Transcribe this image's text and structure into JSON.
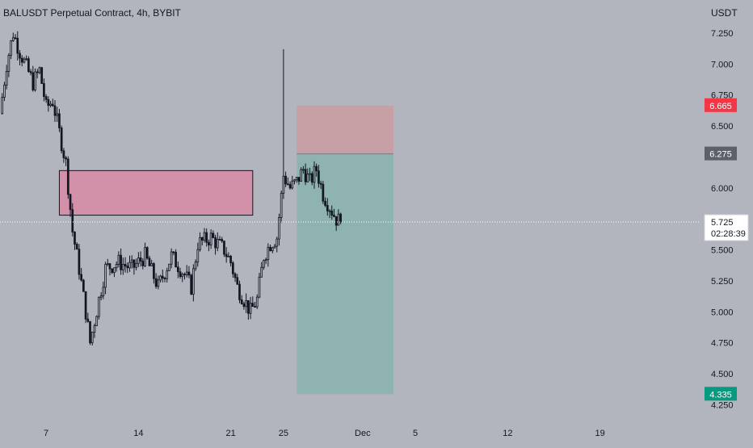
{
  "header": {
    "title": "BALUSDT Perpetual Contract, 4h, BYBIT",
    "currency": "USDT"
  },
  "colors": {
    "background": "#b2b5be",
    "candle": "#131722",
    "supply_zone_fill": "#d291a8",
    "risk_zone_fill": "#c7a0a6",
    "reward_zone_fill": "#8fb3b0",
    "stop_label": "#f23645",
    "target_label": "#089981",
    "entry_label": "#5d606b",
    "last_price_label": "#ffffff"
  },
  "chart_data": {
    "type": "candlestick",
    "symbol": "BALUSDT",
    "interval": "4h",
    "exchange": "BYBIT",
    "y_axis": {
      "range": [
        4.2,
        7.4
      ],
      "ticks": [
        "7.250",
        "7.000",
        "6.750",
        "6.500",
        "6.000",
        "5.500",
        "5.250",
        "5.000",
        "4.750",
        "4.500",
        "4.250"
      ]
    },
    "x_axis": {
      "range_days": [
        "Nov 3 12:00",
        "Dec 26 12:00"
      ],
      "ticks": [
        {
          "label": "7",
          "date": "Nov 7"
        },
        {
          "label": "14",
          "date": "Nov 14"
        },
        {
          "label": "21",
          "date": "Nov 21"
        },
        {
          "label": "25",
          "date": "Nov 25"
        },
        {
          "label": "Dec",
          "date": "Dec 1"
        },
        {
          "label": "5",
          "date": "Dec 5"
        },
        {
          "label": "12",
          "date": "Dec 12"
        },
        {
          "label": "19",
          "date": "Dec 19"
        }
      ]
    },
    "price_path": [
      {
        "date": "Nov 3 12:00",
        "price": 6.6
      },
      {
        "date": "Nov 4 00:00",
        "price": 7.0
      },
      {
        "date": "Nov 4 12:00",
        "price": 7.25
      },
      {
        "date": "Nov 5 00:00",
        "price": 7.1
      },
      {
        "date": "Nov 6 00:00",
        "price": 6.85
      },
      {
        "date": "Nov 6 12:00",
        "price": 6.95
      },
      {
        "date": "Nov 7 00:00",
        "price": 6.65
      },
      {
        "date": "Nov 7 12:00",
        "price": 6.7
      },
      {
        "date": "Nov 8 00:00",
        "price": 6.45
      },
      {
        "date": "Nov 8 12:00",
        "price": 6.2
      },
      {
        "date": "Nov 9 00:00",
        "price": 5.65
      },
      {
        "date": "Nov 9 12:00",
        "price": 5.35
      },
      {
        "date": "Nov 10 00:00",
        "price": 5.0
      },
      {
        "date": "Nov 10 08:00",
        "price": 4.75
      },
      {
        "date": "Nov 11 00:00",
        "price": 5.1
      },
      {
        "date": "Nov 11 12:00",
        "price": 5.35
      },
      {
        "date": "Nov 12 12:00",
        "price": 5.4
      },
      {
        "date": "Nov 13 12:00",
        "price": 5.35
      },
      {
        "date": "Nov 14 12:00",
        "price": 5.45
      },
      {
        "date": "Nov 15 12:00",
        "price": 5.2
      },
      {
        "date": "Nov 16 12:00",
        "price": 5.45
      },
      {
        "date": "Nov 17 12:00",
        "price": 5.3
      },
      {
        "date": "Nov 18 00:00",
        "price": 5.2
      },
      {
        "date": "Nov 18 12:00",
        "price": 5.55
      },
      {
        "date": "Nov 19 12:00",
        "price": 5.6
      },
      {
        "date": "Nov 20 12:00",
        "price": 5.5
      },
      {
        "date": "Nov 21 00:00",
        "price": 5.4
      },
      {
        "date": "Nov 21 12:00",
        "price": 5.2
      },
      {
        "date": "Nov 22 12:00",
        "price": 5.0
      },
      {
        "date": "Nov 23 00:00",
        "price": 5.1
      },
      {
        "date": "Nov 23 12:00",
        "price": 5.45
      },
      {
        "date": "Nov 24 00:00",
        "price": 5.55
      },
      {
        "date": "Nov 24 12:00",
        "price": 5.6
      },
      {
        "date": "Nov 25 00:00",
        "price": 6.1
      },
      {
        "date": "Nov 25 12:00",
        "price": 6.0
      },
      {
        "date": "Nov 26 00:00",
        "price": 6.05
      },
      {
        "date": "Nov 26 12:00",
        "price": 6.15
      },
      {
        "date": "Nov 27 00:00",
        "price": 6.05
      },
      {
        "date": "Nov 27 12:00",
        "price": 6.15
      },
      {
        "date": "Nov 28 00:00",
        "price": 5.95
      },
      {
        "date": "Nov 28 12:00",
        "price": 5.85
      },
      {
        "date": "Nov 29 00:00",
        "price": 5.75
      },
      {
        "date": "Nov 29 08:00",
        "price": 5.725
      }
    ],
    "spike_high": {
      "date": "Nov 25 00:00",
      "price": 7.12
    },
    "annotations": {
      "supply_zone": {
        "x_start": "Nov 8 00:00",
        "x_end": "Nov 22 16:00",
        "y_top": 6.14,
        "y_bottom": 5.78
      },
      "position": {
        "type": "short",
        "x_start": "Nov 26 00:00",
        "x_end": "Dec 3 08:00",
        "entry": 6.275,
        "stop": 6.665,
        "target": 4.335
      }
    },
    "price_labels": {
      "stop": "6.665",
      "entry": "6.275",
      "target": "4.335",
      "last": "5.725",
      "countdown": "02:28:39"
    },
    "grid": false
  }
}
